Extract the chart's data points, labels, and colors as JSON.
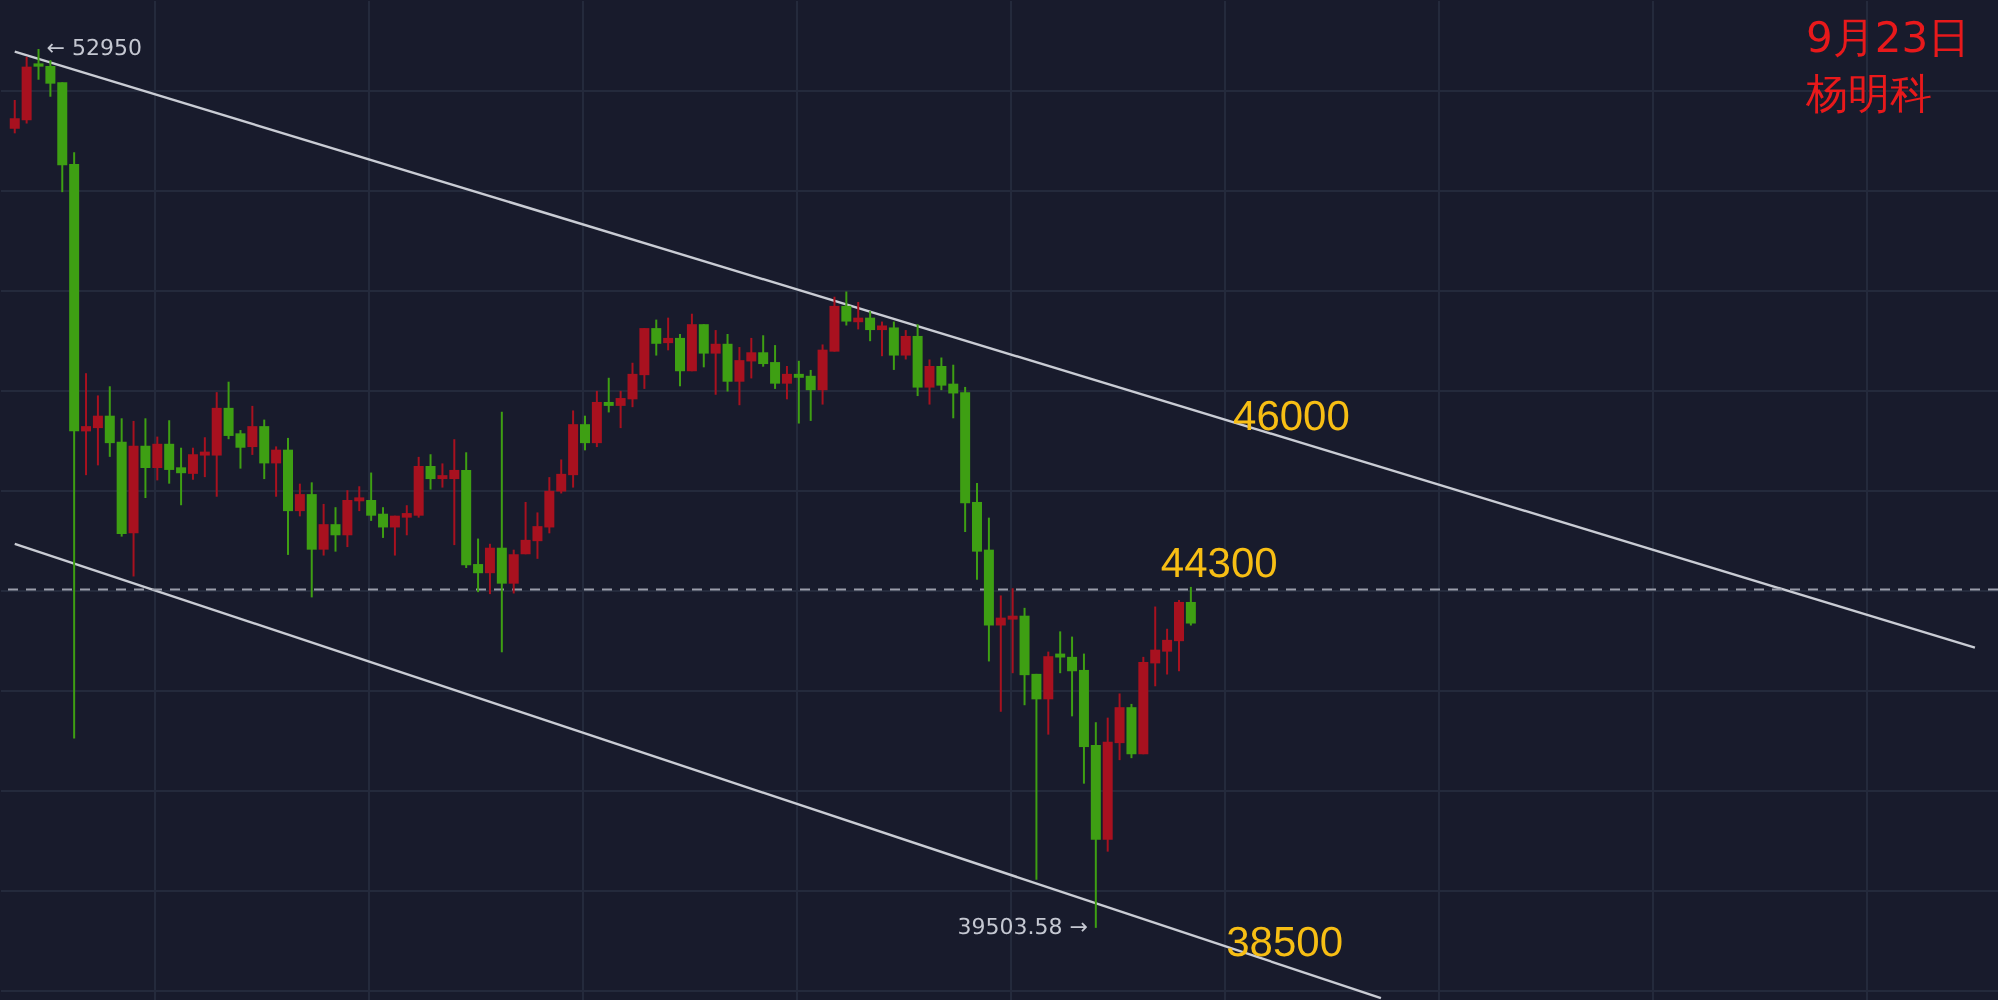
{
  "chart_data": {
    "type": "candlestick",
    "categories": [
      null,
      null,
      null,
      null,
      null,
      null,
      null,
      null,
      null,
      null,
      null,
      null,
      null,
      null,
      null,
      null,
      null,
      null,
      null,
      null,
      null,
      null,
      null,
      null,
      null,
      null,
      null,
      null,
      null,
      null,
      null,
      null,
      null,
      null,
      null,
      null,
      null,
      null,
      null,
      null,
      null,
      null,
      null,
      null,
      null,
      null,
      null,
      null,
      null,
      null,
      null,
      null,
      null,
      null,
      null,
      null,
      null,
      null,
      null,
      null,
      null,
      null,
      null,
      null,
      null,
      null,
      null,
      null,
      null,
      null,
      null,
      null,
      null,
      null,
      null,
      null,
      null,
      null,
      null,
      null,
      null,
      null,
      null,
      null,
      null,
      null,
      null,
      null,
      null,
      null,
      null,
      null,
      null,
      null,
      null,
      null,
      null,
      null,
      null,
      null,
      null,
      null,
      null,
      null,
      null,
      null,
      null,
      null,
      null,
      null,
      null,
      null,
      null,
      null,
      null,
      null,
      null,
      null,
      null,
      null,
      null,
      null,
      null,
      null,
      null,
      null,
      null,
      null,
      null,
      null,
      null,
      null,
      null,
      null,
      null,
      null,
      null,
      null,
      null,
      null,
      null,
      null,
      null,
      null,
      null,
      null,
      null,
      null,
      null,
      null,
      null,
      null,
      null,
      null,
      null,
      null,
      null,
      null,
      null,
      null,
      null,
      null,
      null,
      null,
      null,
      null
    ],
    "ohlc": [
      [
        51730,
        52170,
        51660,
        51890
      ],
      [
        51860,
        52830,
        51810,
        52680
      ],
      [
        52730,
        52950,
        52480,
        52680
      ],
      [
        52690,
        52780,
        52220,
        52420
      ],
      [
        52440,
        52440,
        50760,
        51170
      ],
      [
        51190,
        51370,
        42400,
        47100
      ],
      [
        47100,
        47990,
        46430,
        47180
      ],
      [
        47150,
        47650,
        46580,
        47340
      ],
      [
        47340,
        47790,
        46710,
        46920
      ],
      [
        46940,
        47300,
        45490,
        45530
      ],
      [
        45540,
        47260,
        44880,
        46880
      ],
      [
        46880,
        47300,
        46080,
        46540
      ],
      [
        46540,
        47020,
        46350,
        46910
      ],
      [
        46910,
        47270,
        46300,
        46510
      ],
      [
        46550,
        46850,
        45970,
        46460
      ],
      [
        46450,
        46850,
        46360,
        46750
      ],
      [
        46730,
        47010,
        46400,
        46790
      ],
      [
        46730,
        47700,
        46100,
        47460
      ],
      [
        47460,
        47860,
        46980,
        47030
      ],
      [
        47070,
        47120,
        46530,
        46850
      ],
      [
        46860,
        47490,
        46740,
        47180
      ],
      [
        47180,
        47280,
        46370,
        46610
      ],
      [
        46610,
        46870,
        46100,
        46820
      ],
      [
        46820,
        47000,
        45210,
        45880
      ],
      [
        45880,
        46300,
        45800,
        46140
      ],
      [
        46140,
        46320,
        44560,
        45290
      ],
      [
        45290,
        45990,
        45200,
        45680
      ],
      [
        45680,
        45940,
        45260,
        45510
      ],
      [
        45510,
        46200,
        45330,
        46050
      ],
      [
        46030,
        46260,
        45880,
        46090
      ],
      [
        46050,
        46470,
        45730,
        45810
      ],
      [
        45840,
        45940,
        45470,
        45630
      ],
      [
        45630,
        45810,
        45200,
        45810
      ],
      [
        45780,
        45970,
        45510,
        45850
      ],
      [
        45810,
        46710,
        45780,
        46570
      ],
      [
        46570,
        46750,
        46210,
        46370
      ],
      [
        46370,
        46610,
        46240,
        46430
      ],
      [
        46370,
        46980,
        45360,
        46510
      ],
      [
        46510,
        46780,
        45010,
        45050
      ],
      [
        45070,
        45460,
        44640,
        44930
      ],
      [
        44930,
        45380,
        44610,
        45320
      ],
      [
        45320,
        47400,
        43720,
        44770
      ],
      [
        44770,
        45290,
        44620,
        45220
      ],
      [
        45220,
        46020,
        45220,
        45440
      ],
      [
        45420,
        45860,
        45150,
        45650
      ],
      [
        45630,
        46400,
        45540,
        46190
      ],
      [
        46180,
        46670,
        46150,
        46450
      ],
      [
        46430,
        47420,
        46240,
        47210
      ],
      [
        47210,
        47340,
        46810,
        46920
      ],
      [
        46920,
        47720,
        46860,
        47550
      ],
      [
        47550,
        47920,
        47390,
        47490
      ],
      [
        47490,
        47720,
        47150,
        47610
      ],
      [
        47590,
        48150,
        47470,
        47980
      ],
      [
        47960,
        48680,
        47750,
        48680
      ],
      [
        48680,
        48810,
        48260,
        48440
      ],
      [
        48450,
        48840,
        48340,
        48530
      ],
      [
        48530,
        48590,
        47790,
        48020
      ],
      [
        48020,
        48900,
        48020,
        48740
      ],
      [
        48740,
        48740,
        48080,
        48290
      ],
      [
        48290,
        48650,
        47660,
        48440
      ],
      [
        48440,
        48590,
        47710,
        47860
      ],
      [
        47860,
        48390,
        47500,
        48190
      ],
      [
        48170,
        48530,
        47910,
        48310
      ],
      [
        48310,
        48570,
        48090,
        48130
      ],
      [
        48160,
        48420,
        47750,
        47830
      ],
      [
        47830,
        48100,
        47590,
        47980
      ],
      [
        47980,
        48180,
        47220,
        47920
      ],
      [
        47950,
        48040,
        47260,
        47730
      ],
      [
        47730,
        48430,
        47510,
        48350
      ],
      [
        48320,
        49160,
        48320,
        49020
      ],
      [
        49020,
        49240,
        48720,
        48780
      ],
      [
        48770,
        49080,
        48660,
        48840
      ],
      [
        48840,
        48940,
        48480,
        48650
      ],
      [
        48650,
        48780,
        48250,
        48720
      ],
      [
        48690,
        48780,
        48040,
        48260
      ],
      [
        48260,
        48650,
        48200,
        48560
      ],
      [
        48560,
        48740,
        47640,
        47770
      ],
      [
        47770,
        48200,
        47510,
        48100
      ],
      [
        48100,
        48230,
        47730,
        47800
      ],
      [
        47830,
        48120,
        47300,
        47680
      ],
      [
        47700,
        47780,
        45560,
        46000
      ],
      [
        46020,
        46310,
        44830,
        45260
      ],
      [
        45290,
        45780,
        43580,
        44130
      ],
      [
        44130,
        44590,
        42810,
        44250
      ],
      [
        44220,
        44700,
        43400,
        44280
      ],
      [
        44280,
        44400,
        42910,
        43370
      ],
      [
        43390,
        43390,
        40240,
        43000
      ],
      [
        43000,
        43730,
        42460,
        43660
      ],
      [
        43700,
        44040,
        43400,
        43640
      ],
      [
        43650,
        43960,
        42740,
        43430
      ],
      [
        43450,
        43700,
        41710,
        42270
      ],
      [
        42300,
        42650,
        39503.58,
        40850
      ],
      [
        40850,
        42720,
        40670,
        42350
      ],
      [
        42330,
        43090,
        42070,
        42880
      ],
      [
        42880,
        42930,
        42100,
        42160
      ],
      [
        42160,
        43650,
        42160,
        43570
      ],
      [
        43550,
        44420,
        43200,
        43760
      ],
      [
        43730,
        44080,
        43380,
        43910
      ],
      [
        43890,
        44520,
        43430,
        44490
      ],
      [
        44490,
        44720,
        44130,
        44160
      ],
      null,
      null,
      null,
      null,
      null,
      null,
      null,
      null,
      null,
      null,
      null,
      null,
      null,
      null,
      null,
      null,
      null,
      null,
      null,
      null,
      null,
      null,
      null,
      null,
      null,
      null,
      null,
      null,
      null,
      null,
      null,
      null,
      null,
      null,
      null,
      null,
      null,
      null,
      null,
      null,
      null,
      null,
      null,
      null,
      null,
      null,
      null,
      null,
      null,
      null,
      null,
      null,
      null,
      null,
      null,
      null,
      null,
      null,
      null,
      null,
      null,
      null,
      null,
      null,
      null,
      null
    ],
    "colors": [
      "#a8111f",
      "#a8111f",
      "#3e9f13",
      "#3e9f13",
      "#3e9f13",
      "#3e9f13",
      "#a8111f",
      "#a8111f",
      "#3e9f13",
      "#3e9f13",
      "#a8111f",
      "#3e9f13",
      "#a8111f",
      "#3e9f13",
      "#3e9f13",
      "#a8111f",
      "#a8111f",
      "#a8111f",
      "#3e9f13",
      "#3e9f13",
      "#a8111f",
      "#3e9f13",
      "#a8111f",
      "#3e9f13",
      "#a8111f",
      "#3e9f13",
      "#a8111f",
      "#3e9f13",
      "#a8111f",
      "#a8111f",
      "#3e9f13",
      "#3e9f13",
      "#a8111f",
      "#a8111f",
      "#a8111f",
      "#3e9f13",
      "#a8111f",
      "#a8111f",
      "#3e9f13",
      "#3e9f13",
      "#a8111f",
      "#3e9f13",
      "#a8111f",
      "#a8111f",
      "#a8111f",
      "#a8111f",
      "#a8111f",
      "#a8111f",
      "#3e9f13",
      "#a8111f",
      "#3e9f13",
      "#a8111f",
      "#a8111f",
      "#a8111f",
      "#3e9f13",
      "#a8111f",
      "#3e9f13",
      "#a8111f",
      "#3e9f13",
      "#a8111f",
      "#3e9f13",
      "#a8111f",
      "#a8111f",
      "#3e9f13",
      "#3e9f13",
      "#a8111f",
      "#3e9f13",
      "#3e9f13",
      "#a8111f",
      "#a8111f",
      "#3e9f13",
      "#a8111f",
      "#3e9f13",
      "#a8111f",
      "#3e9f13",
      "#a8111f",
      "#3e9f13",
      "#a8111f",
      "#3e9f13",
      "#3e9f13",
      "#3e9f13",
      "#3e9f13",
      "#3e9f13",
      "#a8111f",
      "#a8111f",
      "#3e9f13",
      "#3e9f13",
      "#a8111f",
      "#3e9f13",
      "#3e9f13",
      "#3e9f13",
      "#3e9f13",
      "#a8111f",
      "#a8111f",
      "#3e9f13",
      "#a8111f",
      "#a8111f",
      "#a8111f",
      "#a8111f",
      "#3e9f13",
      null,
      null,
      null,
      null,
      null,
      null,
      null,
      null,
      null,
      null,
      null,
      null,
      null,
      null,
      null,
      null,
      null,
      null,
      null,
      null,
      null,
      null,
      null,
      null,
      null,
      null,
      null,
      null,
      null,
      null,
      null,
      null,
      null,
      null,
      null,
      null,
      null,
      null,
      null,
      null,
      null,
      null,
      null,
      null,
      null,
      null,
      null,
      null,
      null,
      null,
      null,
      null,
      null,
      null,
      null,
      null,
      null,
      null,
      null,
      null,
      null,
      null,
      null,
      null,
      null,
      null
    ],
    "series": [
      {
        "type": "line",
        "color": "#c9ccd4",
        "values": [
          52910,
          null,
          null,
          null,
          null,
          null,
          null,
          null,
          null,
          null,
          null,
          null,
          null,
          null,
          null,
          null,
          null,
          null,
          null,
          null,
          null,
          null,
          null,
          null,
          null,
          null,
          null,
          null,
          null,
          null,
          null,
          null,
          null,
          null,
          null,
          null,
          null,
          null,
          null,
          null,
          null,
          null,
          null,
          null,
          null,
          null,
          null,
          null,
          null,
          null,
          null,
          null,
          null,
          null,
          null,
          null,
          null,
          null,
          null,
          null,
          null,
          null,
          null,
          null,
          null,
          null,
          null,
          null,
          null,
          null,
          null,
          null,
          null,
          null,
          null,
          null,
          null,
          null,
          null,
          null,
          null,
          null,
          null,
          null,
          null,
          null,
          null,
          null,
          null,
          null,
          null,
          null,
          null,
          null,
          null,
          null,
          null,
          null,
          null,
          null,
          null,
          null,
          null,
          null,
          null,
          null,
          null,
          null,
          null,
          null,
          null,
          null,
          null,
          null,
          null,
          null,
          null,
          null,
          null,
          null,
          null,
          null,
          null,
          null,
          null,
          null,
          null,
          null,
          null,
          null,
          null,
          null,
          null,
          null,
          null,
          null,
          null,
          null,
          null,
          null,
          null,
          null,
          null,
          null,
          null,
          null,
          null,
          null,
          null,
          null,
          null,
          null,
          null,
          null,
          null,
          null,
          null,
          null,
          null,
          null,
          null,
          null,
          null,
          null,
          null,
          43790
        ]
      },
      {
        "type": "line",
        "color": "#c9ccd4",
        "values": [
          45380,
          null,
          null,
          null,
          null,
          null,
          null,
          null,
          null,
          null,
          null,
          null,
          null,
          null,
          null,
          null,
          null,
          null,
          null,
          null,
          null,
          null,
          null,
          null,
          null,
          null,
          null,
          null,
          null,
          null,
          null,
          null,
          null,
          null,
          null,
          null,
          null,
          null,
          null,
          null,
          null,
          null,
          null,
          null,
          null,
          null,
          null,
          null,
          null,
          null,
          null,
          null,
          null,
          null,
          null,
          null,
          null,
          null,
          null,
          null,
          null,
          null,
          null,
          null,
          null,
          null,
          null,
          null,
          null,
          null,
          null,
          null,
          null,
          null,
          null,
          null,
          null,
          null,
          null,
          null,
          null,
          null,
          null,
          null,
          null,
          null,
          null,
          null,
          null,
          null,
          null,
          null,
          null,
          null,
          null,
          null,
          null,
          null,
          null,
          null,
          null,
          null,
          null,
          null,
          null,
          null,
          null,
          null,
          null,
          null,
          null,
          null,
          null,
          null,
          null,
          38430,
          null,
          null,
          null,
          null,
          null,
          null,
          null,
          null,
          null,
          null,
          null,
          null,
          null,
          null,
          null,
          null,
          null,
          null,
          null,
          null,
          null,
          null,
          null,
          null,
          null,
          null,
          null,
          null,
          null,
          null,
          null,
          null,
          null,
          null,
          null,
          null,
          null,
          null,
          null,
          null,
          null,
          null,
          null,
          null,
          null,
          null,
          null,
          null,
          null,
          null
        ]
      }
    ],
    "ylim": [
      38400,
      53700
    ],
    "yticks": [
      {
        "value": 52320,
        "label": null
      },
      {
        "value": 50790,
        "label": null
      },
      {
        "value": 49260,
        "label": null
      },
      {
        "value": 47730,
        "label": null
      },
      {
        "value": 46200,
        "label": null
      },
      {
        "value": 44670,
        "label": null
      },
      {
        "value": 43140,
        "label": null
      },
      {
        "value": 41610,
        "label": null
      },
      {
        "value": 40080,
        "label": null
      },
      {
        "value": 38550,
        "label": null
      }
    ],
    "grid": true,
    "tick_labels": false,
    "ref_lines": [
      {
        "axis": "y",
        "value": 44680,
        "color": "#9a9daa",
        "line_style": "dashed"
      }
    ],
    "annotations": [
      "← 52950",
      "39503.58 →",
      {
        "text": "46000",
        "y": 46970
      },
      {
        "text": "44300",
        "y": 44720
      },
      {
        "text": "38500",
        "y": 38920
      },
      "9月23日",
      "杨明科"
    ]
  }
}
